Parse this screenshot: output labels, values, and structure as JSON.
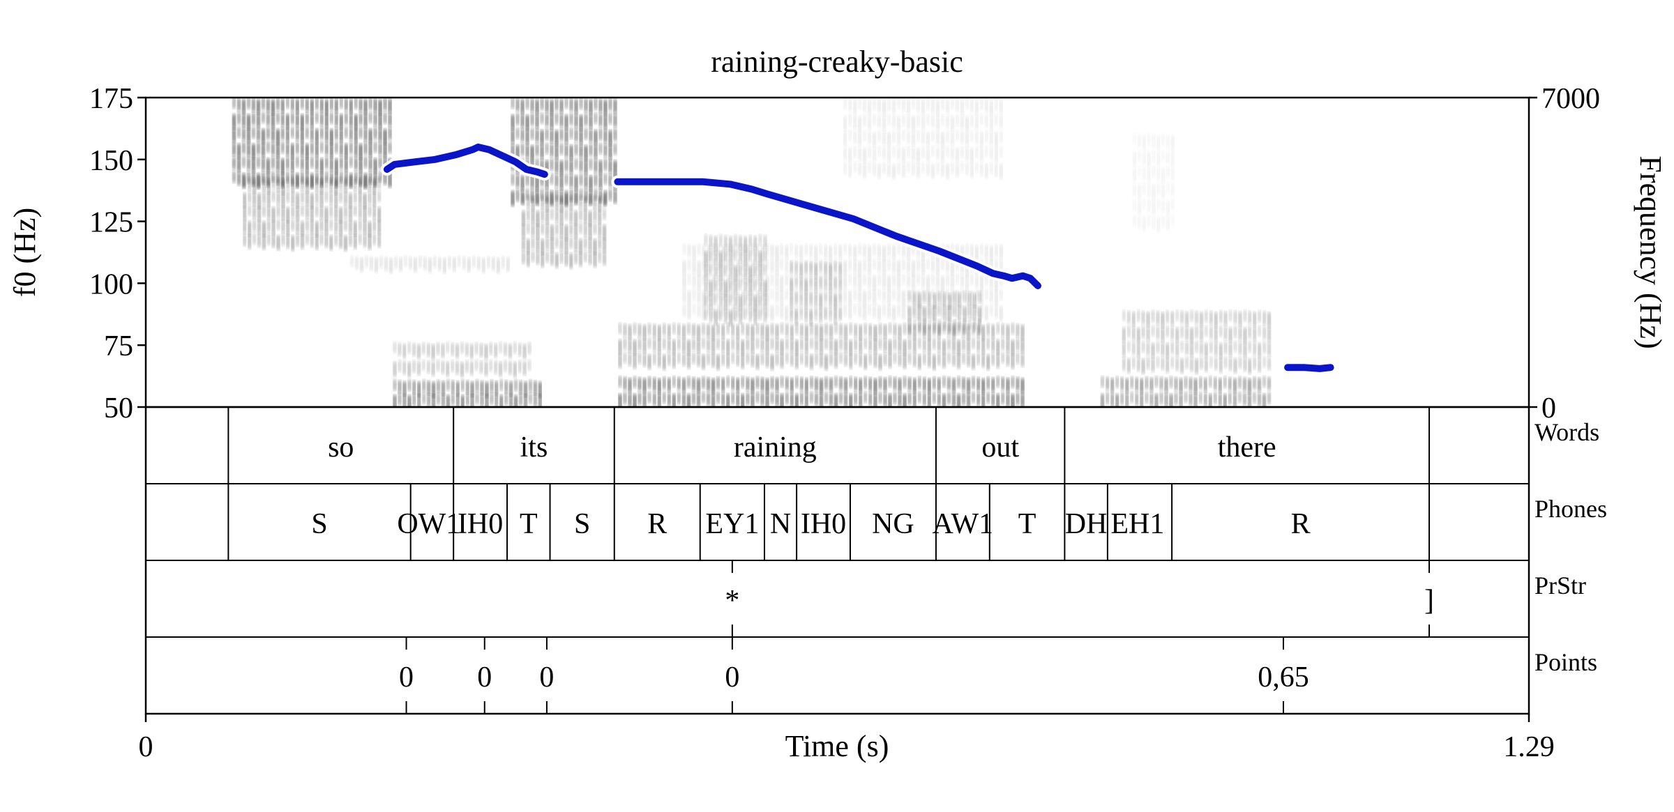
{
  "chart_data": {
    "type": "line",
    "title": "raining-creaky-basic",
    "xlabel": "Time (s)",
    "ylabel_left": "f0 (Hz)",
    "ylabel_right": "Frequency (Hz)",
    "xlim": [
      0,
      1.29
    ],
    "x_tick_labels": [
      "0",
      "1.29"
    ],
    "ylim_left": [
      50,
      175
    ],
    "y_ticks_left": [
      50,
      75,
      100,
      125,
      150,
      175
    ],
    "ylim_right": [
      0,
      7000
    ],
    "y_ticks_right": [
      0,
      7000
    ],
    "background": "spectrogram (grayscale)",
    "series": [
      {
        "color": "#0a14c8",
        "segments": [
          [
            [
              0.225,
              146
            ],
            [
              0.232,
              148
            ],
            [
              0.25,
              149
            ],
            [
              0.27,
              150
            ],
            [
              0.29,
              152
            ],
            [
              0.305,
              154
            ],
            [
              0.31,
              155
            ],
            [
              0.32,
              154
            ],
            [
              0.335,
              151
            ],
            [
              0.345,
              149
            ],
            [
              0.355,
              146
            ],
            [
              0.365,
              145
            ],
            [
              0.372,
              144
            ]
          ],
          [
            [
              0.44,
              141
            ],
            [
              0.47,
              141
            ],
            [
              0.5,
              141
            ],
            [
              0.52,
              141
            ],
            [
              0.545,
              140
            ],
            [
              0.565,
              138
            ],
            [
              0.58,
              136
            ],
            [
              0.62,
              131
            ],
            [
              0.66,
              126
            ],
            [
              0.7,
              119
            ],
            [
              0.74,
              113
            ],
            [
              0.775,
              107
            ],
            [
              0.79,
              104
            ],
            [
              0.8,
              103
            ],
            [
              0.808,
              102
            ],
            [
              0.818,
              103
            ],
            [
              0.825,
              102
            ],
            [
              0.832,
              99
            ]
          ],
          [
            [
              1.065,
              66
            ],
            [
              1.08,
              66
            ],
            [
              1.095,
              65.5
            ],
            [
              1.105,
              66
            ]
          ]
        ]
      }
    ],
    "tiers": [
      {
        "name": "Words",
        "boundaries": [
          0.077,
          0.287,
          0.437,
          0.737,
          0.857,
          1.197
        ],
        "labels": [
          {
            "text": "so",
            "t": 0.182
          },
          {
            "text": "its",
            "t": 0.362
          },
          {
            "text": "raining",
            "t": 0.587
          },
          {
            "text": "out",
            "t": 0.797
          },
          {
            "text": "there",
            "t": 1.027
          }
        ]
      },
      {
        "name": "Phones",
        "boundaries": [
          0.077,
          0.247,
          0.287,
          0.337,
          0.377,
          0.437,
          0.517,
          0.577,
          0.607,
          0.657,
          0.737,
          0.787,
          0.857,
          0.897,
          0.957,
          1.197
        ],
        "labels": [
          {
            "text": "S",
            "t": 0.162
          },
          {
            "text": "OW1",
            "t": 0.264
          },
          {
            "text": "IH0",
            "t": 0.312
          },
          {
            "text": "T",
            "t": 0.357
          },
          {
            "text": "S",
            "t": 0.407
          },
          {
            "text": "R",
            "t": 0.477
          },
          {
            "text": "EY1",
            "t": 0.547
          },
          {
            "text": "N",
            "t": 0.592
          },
          {
            "text": "IH0",
            "t": 0.632
          },
          {
            "text": "NG",
            "t": 0.697
          },
          {
            "text": "AW1",
            "t": 0.762
          },
          {
            "text": "T",
            "t": 0.822
          },
          {
            "text": "DH",
            "t": 0.877
          },
          {
            "text": "EH1",
            "t": 0.925
          },
          {
            "text": "R",
            "t": 1.077
          }
        ]
      },
      {
        "name": "PrStr",
        "points": [
          {
            "text": "*",
            "t": 0.547
          },
          {
            "text": "]",
            "t": 1.197
          }
        ]
      },
      {
        "name": "Points",
        "points": [
          {
            "text": "0",
            "t": 0.243
          },
          {
            "text": "0",
            "t": 0.316
          },
          {
            "text": "0",
            "t": 0.374
          },
          {
            "text": "0",
            "t": 0.547
          },
          {
            "text": "0,65",
            "t": 1.061
          }
        ]
      }
    ]
  }
}
